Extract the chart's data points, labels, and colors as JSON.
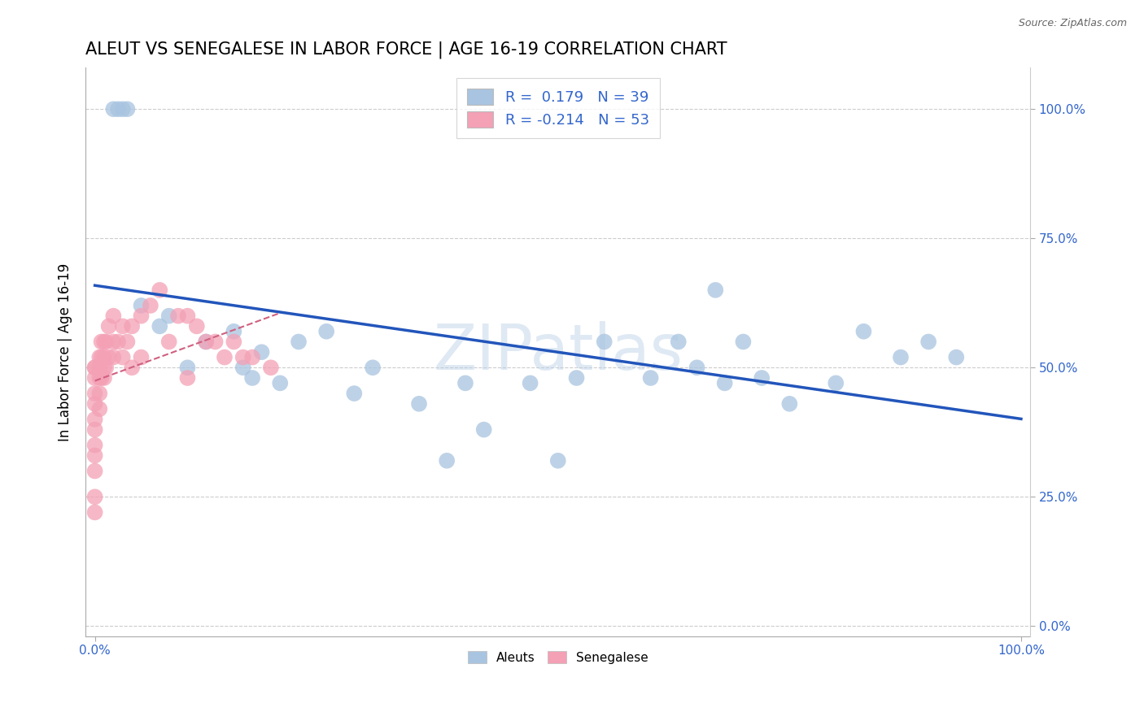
{
  "title": "ALEUT VS SENEGALESE IN LABOR FORCE | AGE 16-19 CORRELATION CHART",
  "source_text": "Source: ZipAtlas.com",
  "ylabel": "In Labor Force | Age 16-19",
  "watermark": "ZIPatlas",
  "legend_aleuts_label": "Aleuts",
  "legend_senegalese_label": "Senegalese",
  "aleut_R": 0.179,
  "aleut_N": 39,
  "senegalese_R": -0.214,
  "senegalese_N": 53,
  "aleut_color": "#a8c4e0",
  "senegalese_color": "#f4a0b5",
  "trend_aleut_color": "#2255bb",
  "trend_senegalese_color": "#d06080",
  "background_color": "#ffffff",
  "grid_color": "#cccccc",
  "aleut_x": [
    0.02,
    0.025,
    0.03,
    0.035,
    0.05,
    0.07,
    0.08,
    0.1,
    0.12,
    0.15,
    0.16,
    0.17,
    0.18,
    0.2,
    0.22,
    0.25,
    0.28,
    0.3,
    0.35,
    0.38,
    0.4,
    0.42,
    0.47,
    0.5,
    0.52,
    0.55,
    0.6,
    0.63,
    0.65,
    0.67,
    0.68,
    0.7,
    0.72,
    0.75,
    0.8,
    0.83,
    0.87,
    0.9,
    0.93
  ],
  "aleut_y": [
    1.0,
    1.0,
    1.0,
    1.0,
    0.62,
    0.58,
    0.6,
    0.5,
    0.55,
    0.57,
    0.5,
    0.48,
    0.53,
    0.47,
    0.55,
    0.57,
    0.45,
    0.5,
    0.43,
    0.32,
    0.47,
    0.38,
    0.47,
    0.32,
    0.48,
    0.55,
    0.48,
    0.55,
    0.5,
    0.65,
    0.47,
    0.55,
    0.48,
    0.43,
    0.47,
    0.57,
    0.52,
    0.55,
    0.52
  ],
  "senegalese_x": [
    0.0,
    0.0,
    0.0,
    0.0,
    0.0,
    0.0,
    0.0,
    0.0,
    0.0,
    0.0,
    0.0,
    0.0,
    0.005,
    0.005,
    0.005,
    0.005,
    0.005,
    0.007,
    0.007,
    0.007,
    0.01,
    0.01,
    0.01,
    0.01,
    0.012,
    0.012,
    0.015,
    0.015,
    0.02,
    0.02,
    0.02,
    0.025,
    0.03,
    0.03,
    0.035,
    0.04,
    0.04,
    0.05,
    0.05,
    0.06,
    0.07,
    0.08,
    0.09,
    0.1,
    0.1,
    0.11,
    0.12,
    0.13,
    0.14,
    0.15,
    0.16,
    0.17,
    0.19
  ],
  "senegalese_y": [
    0.5,
    0.5,
    0.48,
    0.45,
    0.43,
    0.4,
    0.38,
    0.35,
    0.33,
    0.3,
    0.25,
    0.22,
    0.52,
    0.5,
    0.48,
    0.45,
    0.42,
    0.55,
    0.52,
    0.48,
    0.55,
    0.52,
    0.5,
    0.48,
    0.55,
    0.5,
    0.58,
    0.52,
    0.6,
    0.55,
    0.52,
    0.55,
    0.58,
    0.52,
    0.55,
    0.58,
    0.5,
    0.6,
    0.52,
    0.62,
    0.65,
    0.55,
    0.6,
    0.6,
    0.48,
    0.58,
    0.55,
    0.55,
    0.52,
    0.55,
    0.52,
    0.52,
    0.5
  ],
  "x_ticks": [
    0.0,
    1.0
  ],
  "x_tick_labels": [
    "0.0%",
    "100.0%"
  ],
  "y_ticks": [
    0.0,
    0.25,
    0.5,
    0.75,
    1.0
  ],
  "y_tick_labels": [
    "0.0%",
    "25.0%",
    "50.0%",
    "75.0%",
    "100.0%"
  ]
}
